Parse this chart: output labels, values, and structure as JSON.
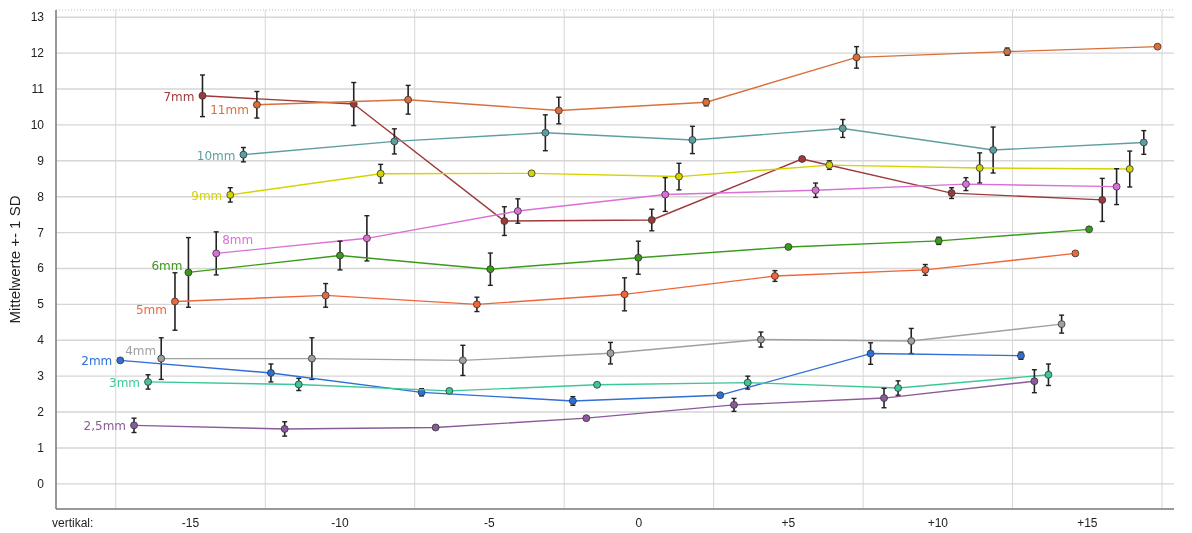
{
  "chart_data": {
    "type": "line",
    "xlabel": "vertikal:",
    "ylabel": "Mittelwerte +- 1 SD",
    "xlim": [
      -19.5,
      17.9
    ],
    "ylim": [
      -0.7,
      13.2
    ],
    "xticks": [
      {
        "value": -17.5,
        "label": null
      },
      {
        "value": -15,
        "label": "-15"
      },
      {
        "value": -12.5,
        "label": null
      },
      {
        "value": -10,
        "label": "-10"
      },
      {
        "value": -7.5,
        "label": null
      },
      {
        "value": -5,
        "label": "-5"
      },
      {
        "value": -2.5,
        "label": null
      },
      {
        "value": 0,
        "label": "0"
      },
      {
        "value": 2.5,
        "label": null
      },
      {
        "value": 5,
        "label": "+5"
      },
      {
        "value": 7.5,
        "label": null
      },
      {
        "value": 10,
        "label": "+10"
      },
      {
        "value": 12.5,
        "label": null
      },
      {
        "value": 15,
        "label": "+15"
      },
      {
        "value": 17.5,
        "label": null
      }
    ],
    "yticks": [
      0,
      1,
      2,
      3,
      4,
      5,
      6,
      7,
      8,
      9,
      10,
      11,
      12,
      13
    ],
    "grid": true,
    "marker": "circle",
    "line_style": "solid",
    "series": [
      {
        "name": "7mm",
        "color": "#9e3a3a",
        "x": [
          -14.6,
          -9.54,
          -4.5,
          0.43,
          5.46,
          10.46,
          15.5
        ],
        "values": [
          10.81,
          10.58,
          7.32,
          7.35,
          9.05,
          8.1,
          7.91
        ],
        "errors": [
          0.58,
          0.6,
          0.4,
          0.3,
          null,
          0.15,
          0.6
        ]
      },
      {
        "name": "11mm",
        "color": "#d9703a",
        "x": [
          -12.78,
          -7.72,
          -2.68,
          2.25,
          7.28,
          12.32,
          17.35
        ],
        "values": [
          10.56,
          10.7,
          10.4,
          10.63,
          11.88,
          12.04,
          12.18
        ],
        "errors": [
          0.37,
          0.4,
          0.37,
          0.1,
          0.3,
          0.1,
          null
        ]
      },
      {
        "name": "10mm",
        "color": "#5f9ea0",
        "x": [
          -13.23,
          -8.18,
          -3.13,
          1.79,
          6.82,
          11.85,
          16.89
        ],
        "values": [
          9.17,
          9.54,
          9.78,
          9.58,
          9.9,
          9.3,
          9.51
        ],
        "errors": [
          0.2,
          0.35,
          0.5,
          0.38,
          0.25,
          0.64,
          0.33
        ]
      },
      {
        "name": "9mm",
        "color": "#d4d400",
        "x": [
          -13.67,
          -8.64,
          -3.59,
          1.34,
          6.37,
          11.4,
          16.42
        ],
        "values": [
          8.05,
          8.64,
          8.65,
          8.56,
          8.88,
          8.8,
          8.77
        ],
        "errors": [
          0.2,
          0.26,
          null,
          0.37,
          0.12,
          0.42,
          0.5
        ]
      },
      {
        "name": "8mm",
        "color": "#da70d6",
        "x": [
          -14.14,
          -9.1,
          -4.05,
          0.88,
          5.91,
          10.94,
          15.98
        ],
        "values": [
          6.42,
          6.84,
          7.6,
          8.06,
          8.18,
          8.35,
          8.28
        ],
        "errors": [
          0.6,
          0.63,
          0.34,
          0.47,
          0.2,
          0.18,
          0.5
        ]
      },
      {
        "name": "6mm",
        "color": "#3a9a1a",
        "x": [
          -15.07,
          -10.0,
          -4.97,
          -0.02,
          5.0,
          10.03,
          15.06
        ],
        "values": [
          5.89,
          6.36,
          5.98,
          6.3,
          6.6,
          6.77,
          7.09
        ],
        "errors": [
          0.97,
          0.4,
          0.45,
          0.46,
          null,
          0.1,
          null
        ]
      },
      {
        "name": "5mm",
        "color": "#f0663a",
        "x": [
          -15.52,
          -10.48,
          -5.42,
          -0.48,
          4.55,
          9.58,
          14.6
        ],
        "values": [
          5.08,
          5.25,
          5.0,
          5.28,
          5.79,
          5.96,
          6.42
        ],
        "errors": [
          0.8,
          0.33,
          0.2,
          0.46,
          0.15,
          0.15,
          null
        ]
      },
      {
        "name": "4mm",
        "color": "#a0a0a0",
        "x": [
          -15.98,
          -10.94,
          -5.89,
          -0.95,
          4.08,
          9.11,
          14.14
        ],
        "values": [
          3.49,
          3.49,
          3.44,
          3.64,
          4.02,
          3.98,
          4.45
        ],
        "errors": [
          0.58,
          0.58,
          0.42,
          0.3,
          0.21,
          0.35,
          0.25
        ]
      },
      {
        "name": "2mm",
        "color": "#2f6fd6",
        "x": [
          -17.35,
          -12.31,
          -7.27,
          -2.21,
          2.72,
          7.75,
          12.78
        ],
        "values": [
          3.44,
          3.09,
          2.55,
          2.31,
          2.47,
          3.63,
          3.57
        ],
        "errors": [
          null,
          0.25,
          0.1,
          0.12,
          null,
          0.3,
          0.1
        ]
      },
      {
        "name": "3mm",
        "color": "#3cc896",
        "x": [
          -16.42,
          -11.38,
          -6.34,
          -1.4,
          3.64,
          8.67,
          13.7
        ],
        "values": [
          2.84,
          2.77,
          2.59,
          2.76,
          2.82,
          2.67,
          3.04
        ],
        "errors": [
          0.2,
          0.17,
          null,
          null,
          0.18,
          0.2,
          0.3
        ]
      },
      {
        "name": "2,5mm",
        "color": "#8b5a9a",
        "x": [
          -16.89,
          -11.85,
          -6.8,
          -1.76,
          3.18,
          8.2,
          13.23
        ],
        "values": [
          1.63,
          1.53,
          1.57,
          1.83,
          2.2,
          2.39,
          2.86
        ],
        "errors": [
          0.2,
          0.2,
          null,
          null,
          0.18,
          0.27,
          0.32
        ]
      }
    ]
  }
}
